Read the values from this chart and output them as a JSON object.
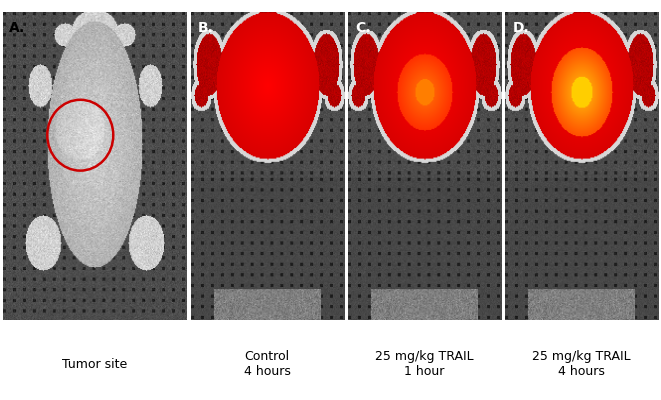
{
  "figure_width": 6.61,
  "figure_height": 4.0,
  "dpi": 100,
  "background_color": "#ffffff",
  "panel_labels": [
    "A.",
    "B.",
    "C.",
    "D."
  ],
  "panel_label_fontsize": 10,
  "panel_label_fontweight": "bold",
  "captions": [
    "Tumor site",
    "Control\n4 hours",
    "25 mg/kg TRAIL\n1 hour",
    "25 mg/kg TRAIL\n4 hours"
  ],
  "caption_fontsize": 9,
  "caption_color": "#000000",
  "circle_color": "#cc0000",
  "circle_linewidth": 1.8
}
